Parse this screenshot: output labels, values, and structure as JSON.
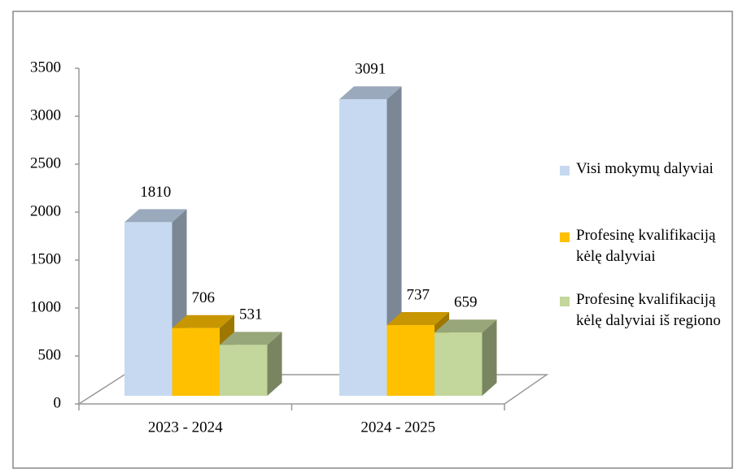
{
  "chart_data": {
    "type": "bar3d",
    "categories": [
      "2023 - 2024",
      "2024 - 2025"
    ],
    "series": [
      {
        "name": "Visi mokymų dalyviai",
        "color": "#c6d9f1",
        "values": [
          1810,
          3091
        ]
      },
      {
        "name": "Profesinę kvalifikaciją kėlę dalyviai",
        "color": "#ffc000",
        "values": [
          706,
          737
        ]
      },
      {
        "name": "Profesinę kvalifikaciją kėlę dalyviai iš regiono",
        "color": "#c3d69b",
        "values": [
          531,
          659
        ]
      }
    ],
    "ylim": [
      0,
      3500
    ],
    "yticks": [
      0,
      500,
      1000,
      1500,
      2000,
      2500,
      3000,
      3500
    ],
    "legend": "right"
  }
}
